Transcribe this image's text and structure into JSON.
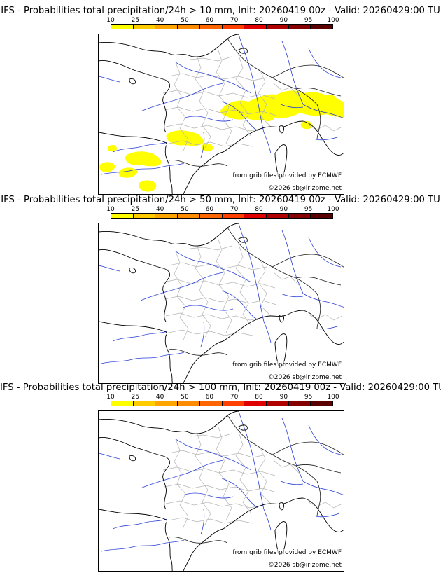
{
  "colorbar": {
    "ticks": [
      "10",
      "25",
      "40",
      "50",
      "60",
      "70",
      "80",
      "90",
      "95",
      "100"
    ],
    "colors": [
      "#ffff00",
      "#ffcc00",
      "#ffa500",
      "#ff8c00",
      "#ff6600",
      "#ff4000",
      "#e00000",
      "#b00000",
      "#850000",
      "#5a0000"
    ]
  },
  "credits": {
    "grib": "from grib files provided by ECMWF",
    "copyright": "©2026 sb@irizpme.net"
  },
  "panels": [
    {
      "title": "IFS - Probabilities total precipitation/24h > 10 mm, Init: 20260419 00z - Valid: 20260429:00 TU",
      "threshold_mm": 10,
      "has_precip": true
    },
    {
      "title": "IFS - Probabilities total precipitation/24h > 50 mm, Init: 20260419 00z - Valid: 20260429:00 TU",
      "threshold_mm": 50,
      "has_precip": false
    },
    {
      "title": "IFS - Probabilities total precipitation/24h > 100 mm, Init: 20260419 00z - Valid: 20260429:00 TU",
      "threshold_mm": 100,
      "has_precip": false
    }
  ]
}
